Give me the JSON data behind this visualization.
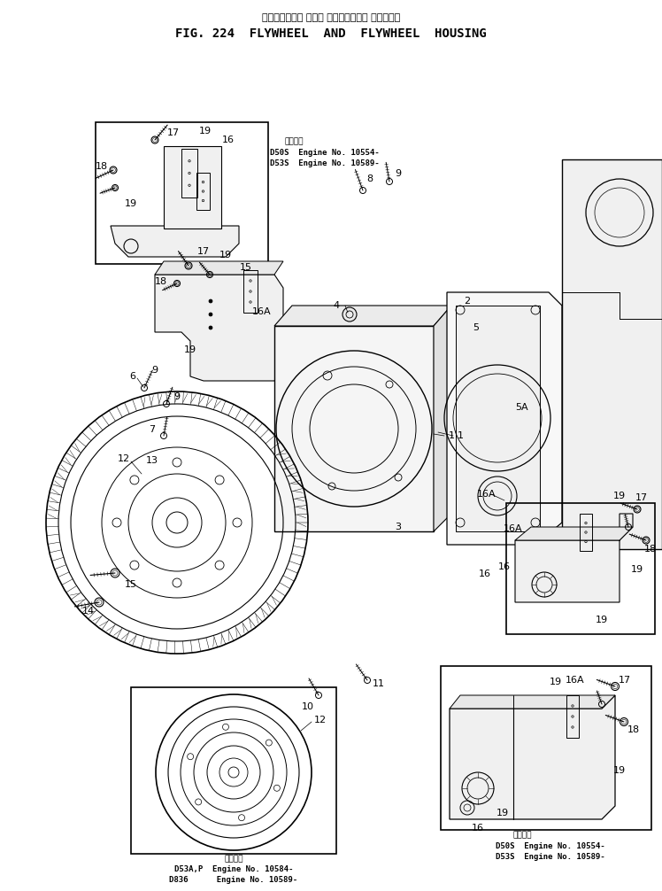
{
  "title_jp": "フライホイール および フライホイール ハウジング",
  "title_en": "FIG. 224  FLYWHEEL  AND  FLYWHEEL  HOUSING",
  "bg_color": "#ffffff",
  "line_color": "#000000",
  "fig_width": 7.48,
  "fig_height": 10.06,
  "dpi": 100,
  "note1_jp": "適用機種",
  "note1_line1": "D50S  Engine No. 10554-",
  "note1_line2": "D53S  Engine No. 10589-",
  "note2_jp": "適用機種",
  "note2_line1": "D53A,P  Engine No. 10584-",
  "note2_line2": "D836      Engine No. 10589-",
  "note3_jp": "適用機種",
  "note3_line1": "D50S  Engine No. 10554-",
  "note3_line2": "D53S  Engine No. 10589-",
  "font_size_title_jp": 8,
  "font_size_title_en": 10,
  "font_size_notes": 6.5,
  "font_size_parts": 8,
  "font_size_notes_bold": 7
}
